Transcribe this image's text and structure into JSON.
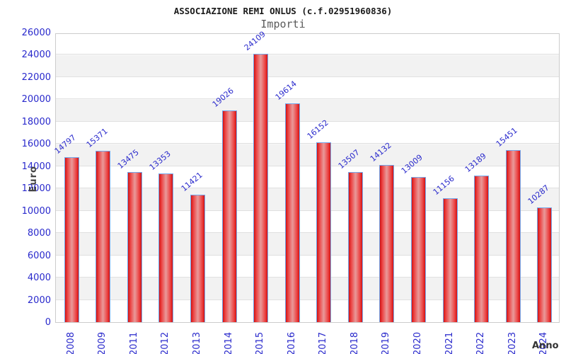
{
  "chart_data": {
    "type": "bar",
    "title": "ASSOCIAZIONE REMI ONLUS (c.f.02951960836)",
    "subtitle": "Importi",
    "xlabel": "Anno",
    "ylabel": "Euro",
    "categories": [
      "2008",
      "2009",
      "2011",
      "2012",
      "2013",
      "2014",
      "2015",
      "2016",
      "2017",
      "2018",
      "2019",
      "2020",
      "2021",
      "2022",
      "2023",
      "2024"
    ],
    "values": [
      14797,
      15371,
      13475,
      13353,
      11421,
      19026,
      24109,
      19614,
      16152,
      13507,
      14132,
      13009,
      11156,
      13189,
      15451,
      10287
    ],
    "ylim": [
      0,
      26000
    ],
    "ytick_step": 2000,
    "legend": false,
    "grid": "horizontal-bands",
    "colors": {
      "bar_fill_edge": "#d21313",
      "bar_fill_center": "#e99a9a",
      "bar_border": "#74a7ea",
      "tick_label_blue": "#2929cc",
      "band_gray": "#f2f2f2",
      "band_white": "#ffffff",
      "frame_gray": "#cccccc",
      "title_color": "#1b1b1b",
      "subtitle_color": "#5a5a5a",
      "axis_title_color": "#444444"
    }
  }
}
